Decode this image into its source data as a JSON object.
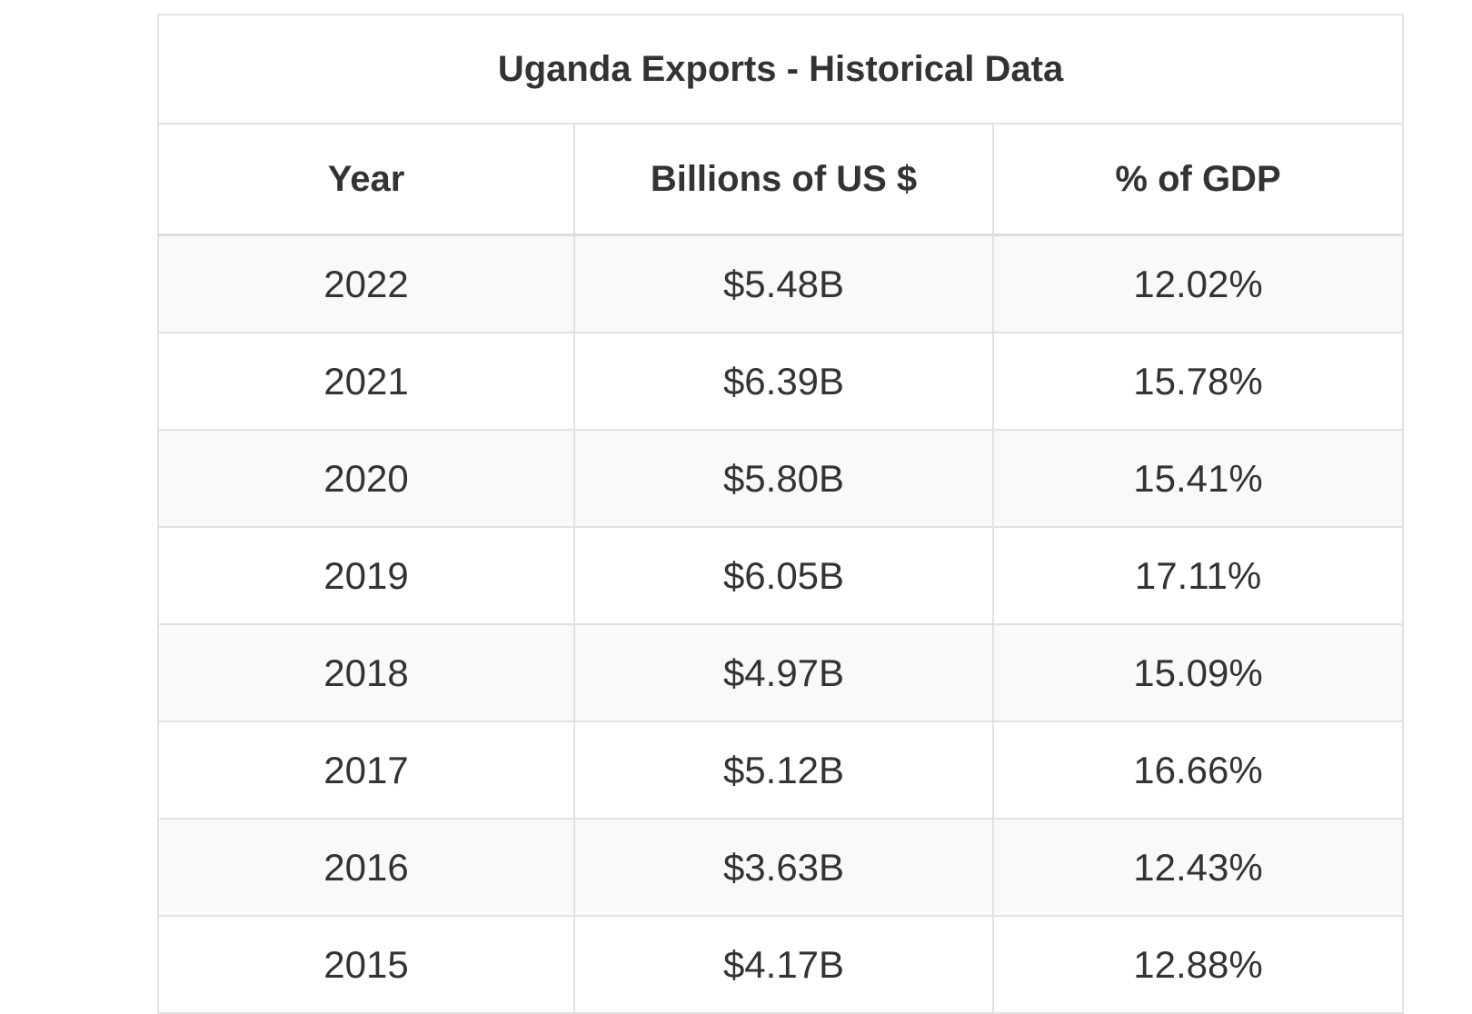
{
  "table": {
    "title": "Uganda Exports - Historical Data",
    "columns": [
      "Year",
      "Billions of US $",
      "% of GDP"
    ],
    "rows": [
      [
        "2022",
        "$5.48B",
        "12.02%"
      ],
      [
        "2021",
        "$6.39B",
        "15.78%"
      ],
      [
        "2020",
        "$5.80B",
        "15.41%"
      ],
      [
        "2019",
        "$6.05B",
        "17.11%"
      ],
      [
        "2018",
        "$4.97B",
        "15.09%"
      ],
      [
        "2017",
        "$5.12B",
        "16.66%"
      ],
      [
        "2016",
        "$3.63B",
        "12.43%"
      ],
      [
        "2015",
        "$4.17B",
        "12.88%"
      ]
    ]
  }
}
